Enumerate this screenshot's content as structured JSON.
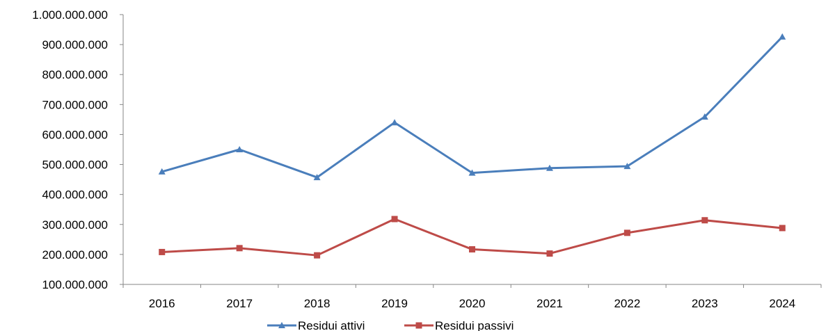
{
  "chart_data": {
    "type": "line",
    "categories": [
      "2016",
      "2017",
      "2018",
      "2019",
      "2020",
      "2021",
      "2022",
      "2023",
      "2024"
    ],
    "series": [
      {
        "name": "Residui attivi",
        "color": "#4A7EBB",
        "marker": "triangle",
        "values": [
          476000000,
          550000000,
          457000000,
          640000000,
          472000000,
          488000000,
          494000000,
          659000000,
          926000000
        ]
      },
      {
        "name": "Residui passivi",
        "color": "#BE4B48",
        "marker": "square",
        "values": [
          208000000,
          221000000,
          197000000,
          318000000,
          217000000,
          203000000,
          272000000,
          314000000,
          288000000
        ]
      }
    ],
    "ylim": [
      100000000,
      1000000000
    ],
    "yticks": [
      100000000,
      200000000,
      300000000,
      400000000,
      500000000,
      600000000,
      700000000,
      800000000,
      900000000,
      1000000000
    ],
    "ytick_labels": [
      "100.000.000",
      "200.000.000",
      "300.000.000",
      "400.000.000",
      "500.000.000",
      "600.000.000",
      "700.000.000",
      "800.000.000",
      "900.000.000",
      "1.000.000.000"
    ],
    "legend_position": "bottom",
    "grid": false,
    "title": "",
    "xlabel": "",
    "ylabel": ""
  }
}
